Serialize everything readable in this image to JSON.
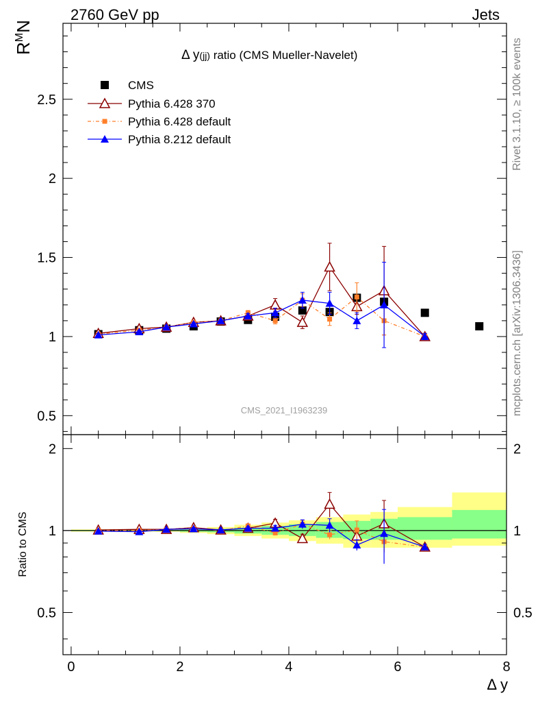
{
  "header": {
    "left": "2760 GeV pp",
    "right": "Jets"
  },
  "side_text": {
    "rivet": "Rivet 3.1.10, ≥ 100k events",
    "mcplots": "mcplots.cern.ch [arXiv:1306.3436]"
  },
  "chart_data": {
    "type": "line",
    "title": "Δ y(jj) ratio (CMS Mueller-Navelet)",
    "title_main": "Δ y",
    "title_sub": "(jj)",
    "title_rest": " ratio (CMS Mueller-Navelet)",
    "analysis_label": "CMS_2021_I1963239",
    "xlabel": "Δ y",
    "ylabel_main": "R",
    "ylabel_sup": "M",
    "ylabel_sub": "N",
    "ratio_ylabel": "Ratio to CMS",
    "xlim": [
      -0.15,
      8.0
    ],
    "ylim_main": [
      0.38,
      2.98
    ],
    "ylim_ratio": [
      0.35,
      2.25
    ],
    "x_ticks": [
      "0",
      "2",
      "4",
      "6",
      "8"
    ],
    "x_tick_values": [
      0,
      2,
      4,
      6,
      8
    ],
    "y_ticks_main": [
      "0.5",
      "1",
      "1.5",
      "2",
      "2.5"
    ],
    "y_tick_values_main": [
      0.5,
      1,
      1.5,
      2,
      2.5
    ],
    "y_ticks_ratio": [
      "0.5",
      "1",
      "2"
    ],
    "y_tick_values_ratio": [
      0.5,
      1,
      2
    ],
    "series": [
      {
        "name": "CMS",
        "color": "#000000",
        "marker": "square",
        "x": [
          0.5,
          1.25,
          1.75,
          2.25,
          2.75,
          3.25,
          3.75,
          4.25,
          4.75,
          5.25,
          5.75,
          6.5,
          7.5
        ],
        "values": [
          1.015,
          1.04,
          1.05,
          1.065,
          1.095,
          1.105,
          1.125,
          1.165,
          1.155,
          1.245,
          1.22,
          1.15,
          1.065
        ],
        "xerr": [
          0.5,
          0.25,
          0.25,
          0.25,
          0.25,
          0.25,
          0.25,
          0.25,
          0.25,
          0.25,
          0.25,
          0.5,
          0.5
        ]
      },
      {
        "name": "Pythia 6.428 370",
        "color": "#8b0000",
        "marker": "open-triangle",
        "x": [
          0.5,
          1.25,
          1.75,
          2.25,
          2.75,
          3.25,
          3.75,
          4.25,
          4.75,
          5.25,
          5.75,
          6.5
        ],
        "values": [
          1.02,
          1.05,
          1.06,
          1.09,
          1.1,
          1.13,
          1.2,
          1.09,
          1.44,
          1.19,
          1.29,
          1.0
        ],
        "errors": [
          0.01,
          0.01,
          0.01,
          0.01,
          0.01,
          0.015,
          0.04,
          0.04,
          0.15,
          0.05,
          0.28,
          0.02
        ],
        "ratio": [
          1.005,
          1.01,
          1.01,
          1.025,
          1.005,
          1.02,
          1.065,
          0.935,
          1.25,
          0.955,
          1.06,
          0.87
        ],
        "ratio_err": [
          0.01,
          0.01,
          0.01,
          0.01,
          0.01,
          0.015,
          0.035,
          0.035,
          0.13,
          0.04,
          0.23,
          0.02
        ]
      },
      {
        "name": "Pythia 6.428 default",
        "color": "#ff7f2a",
        "marker": "small-square",
        "x": [
          0.5,
          1.25,
          1.75,
          2.25,
          2.75,
          3.25,
          3.75,
          4.25,
          4.75,
          5.25,
          5.75,
          6.5
        ],
        "values": [
          1.015,
          1.04,
          1.06,
          1.09,
          1.1,
          1.15,
          1.1,
          1.23,
          1.11,
          1.25,
          1.1,
          1.0
        ],
        "errors": [
          0.01,
          0.01,
          0.01,
          0.01,
          0.01,
          0.015,
          0.02,
          0.04,
          0.04,
          0.09,
          0.09,
          0.02
        ],
        "ratio": [
          1.0,
          1.0,
          1.01,
          1.02,
          1.0,
          1.04,
          0.98,
          1.055,
          0.965,
          1.005,
          0.91,
          0.87
        ],
        "ratio_err": [
          0.01,
          0.01,
          0.01,
          0.01,
          0.01,
          0.015,
          0.02,
          0.035,
          0.035,
          0.08,
          0.075,
          0.02
        ]
      },
      {
        "name": "Pythia 8.212 default",
        "color": "#0000ff",
        "marker": "filled-triangle",
        "x": [
          0.5,
          1.25,
          1.75,
          2.25,
          2.75,
          3.25,
          3.75,
          4.25,
          4.75,
          5.25,
          5.75,
          6.5
        ],
        "values": [
          1.01,
          1.03,
          1.06,
          1.08,
          1.1,
          1.13,
          1.15,
          1.23,
          1.21,
          1.1,
          1.2,
          1.0
        ],
        "errors": [
          0.01,
          0.01,
          0.01,
          0.01,
          0.01,
          0.015,
          0.03,
          0.05,
          0.07,
          0.05,
          0.27,
          0.02
        ],
        "ratio": [
          0.995,
          0.99,
          1.01,
          1.015,
          1.005,
          1.02,
          1.02,
          1.055,
          1.045,
          0.885,
          0.975,
          0.87
        ],
        "ratio_err": [
          0.01,
          0.01,
          0.01,
          0.01,
          0.01,
          0.015,
          0.025,
          0.04,
          0.06,
          0.04,
          0.22,
          0.02
        ]
      }
    ],
    "ratio_bands": {
      "edges": [
        0,
        1.0,
        1.5,
        2.0,
        2.5,
        3.0,
        3.5,
        4.0,
        4.5,
        5.0,
        5.5,
        6.0,
        7.0,
        8.0
      ],
      "green_lo": [
        0.995,
        0.995,
        0.995,
        0.99,
        0.985,
        0.975,
        0.965,
        0.955,
        0.94,
        0.93,
        0.925,
        0.925,
        0.935
      ],
      "green_hi": [
        1.005,
        1.005,
        1.005,
        1.01,
        1.015,
        1.025,
        1.04,
        1.055,
        1.075,
        1.085,
        1.105,
        1.12,
        1.19
      ],
      "yellow_lo": [
        0.99,
        0.99,
        0.99,
        0.98,
        0.97,
        0.955,
        0.935,
        0.915,
        0.895,
        0.865,
        0.865,
        0.865,
        0.88
      ],
      "yellow_hi": [
        1.01,
        1.01,
        1.01,
        1.02,
        1.03,
        1.05,
        1.07,
        1.09,
        1.12,
        1.145,
        1.17,
        1.22,
        1.38
      ]
    }
  }
}
